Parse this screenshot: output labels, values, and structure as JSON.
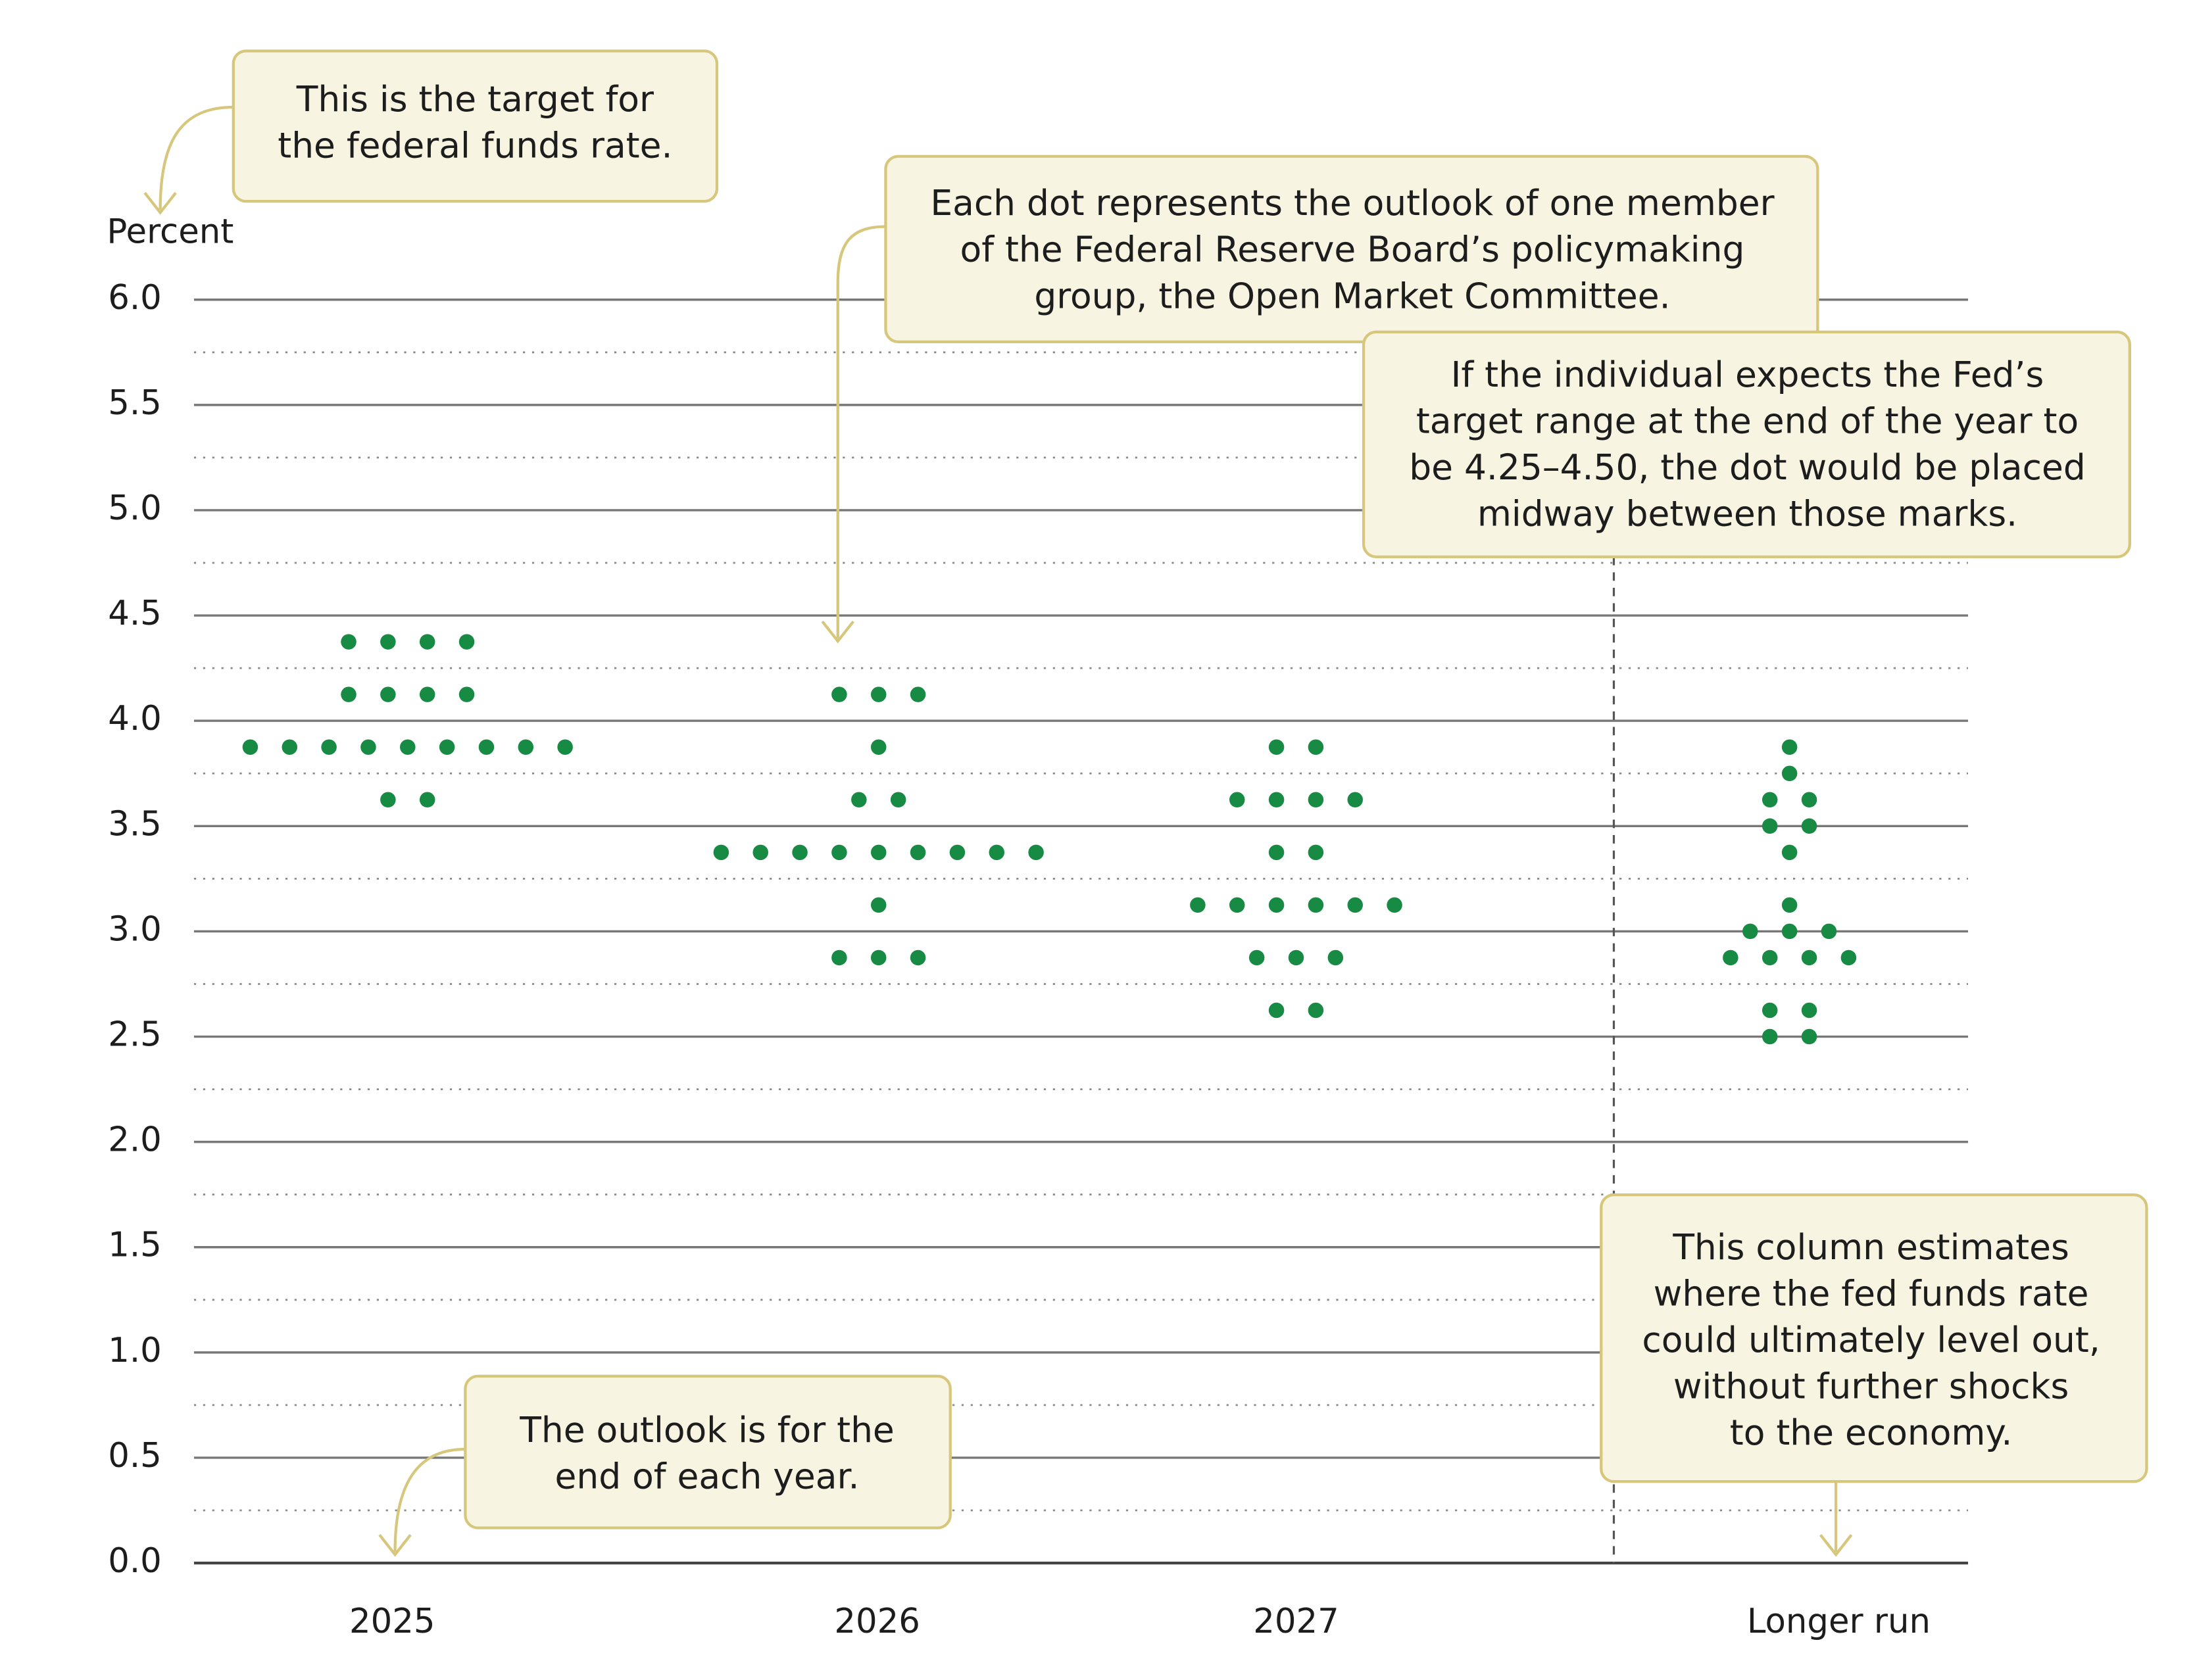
{
  "chart_data": {
    "type": "dot",
    "y_label": "Percent",
    "categories": [
      "2025",
      "2026",
      "2027",
      "Longer run"
    ],
    "values": [
      [
        4.375,
        4.375,
        4.375,
        4.375,
        4.125,
        4.125,
        4.125,
        4.125,
        3.875,
        3.875,
        3.875,
        3.875,
        3.875,
        3.875,
        3.875,
        3.875,
        3.875,
        3.625,
        3.625
      ],
      [
        4.125,
        4.125,
        4.125,
        3.875,
        3.625,
        3.625,
        3.375,
        3.375,
        3.375,
        3.375,
        3.375,
        3.375,
        3.375,
        3.375,
        3.375,
        3.125,
        2.875,
        2.875,
        2.875
      ],
      [
        3.875,
        3.875,
        3.625,
        3.625,
        3.625,
        3.625,
        3.375,
        3.375,
        3.125,
        3.125,
        3.125,
        3.125,
        3.125,
        3.125,
        2.875,
        2.875,
        2.875,
        2.625,
        2.625
      ],
      [
        3.875,
        3.75,
        3.625,
        3.625,
        3.5,
        3.5,
        3.375,
        3.125,
        3.0,
        3.0,
        3.0,
        2.875,
        2.875,
        2.875,
        2.875,
        2.625,
        2.625,
        2.5,
        2.5
      ]
    ],
    "color": "#178a43",
    "ylim": [
      0,
      6
    ],
    "yticks": [
      {
        "value": 0,
        "label": "0.0"
      },
      {
        "value": 0.5,
        "label": "0.5"
      },
      {
        "value": 1,
        "label": "1.0"
      },
      {
        "value": 1.5,
        "label": "1.5"
      },
      {
        "value": 2,
        "label": "2.0"
      },
      {
        "value": 2.5,
        "label": "2.5"
      },
      {
        "value": 3,
        "label": "3.0"
      },
      {
        "value": 3.5,
        "label": "3.5"
      },
      {
        "value": 4,
        "label": "4.0"
      },
      {
        "value": 4.5,
        "label": "4.5"
      },
      {
        "value": 5,
        "label": "5.0"
      },
      {
        "value": 5.5,
        "label": "5.5"
      },
      {
        "value": 6,
        "label": "6.0"
      }
    ],
    "grid": true,
    "minor_grid_step": 0.25,
    "annotations": [
      {
        "lines": [
          "This is the target for",
          "the federal funds rate."
        ]
      },
      {
        "lines": [
          "Each dot represents the outlook of one member",
          "of the Federal Reserve Board’s policymaking",
          "group, the Open Market Committee."
        ]
      },
      {
        "lines": [
          "If the individual expects the Fed’s",
          "target range at the end of the year to",
          "be 4.25–4.50, the dot would be placed",
          "midway between those marks."
        ]
      },
      {
        "lines": [
          "This column estimates",
          "where the fed funds rate",
          "could ultimately level out,",
          "without further shocks",
          "to the economy."
        ]
      },
      {
        "lines": [
          "The outlook is for the",
          "end of each year."
        ]
      }
    ]
  }
}
